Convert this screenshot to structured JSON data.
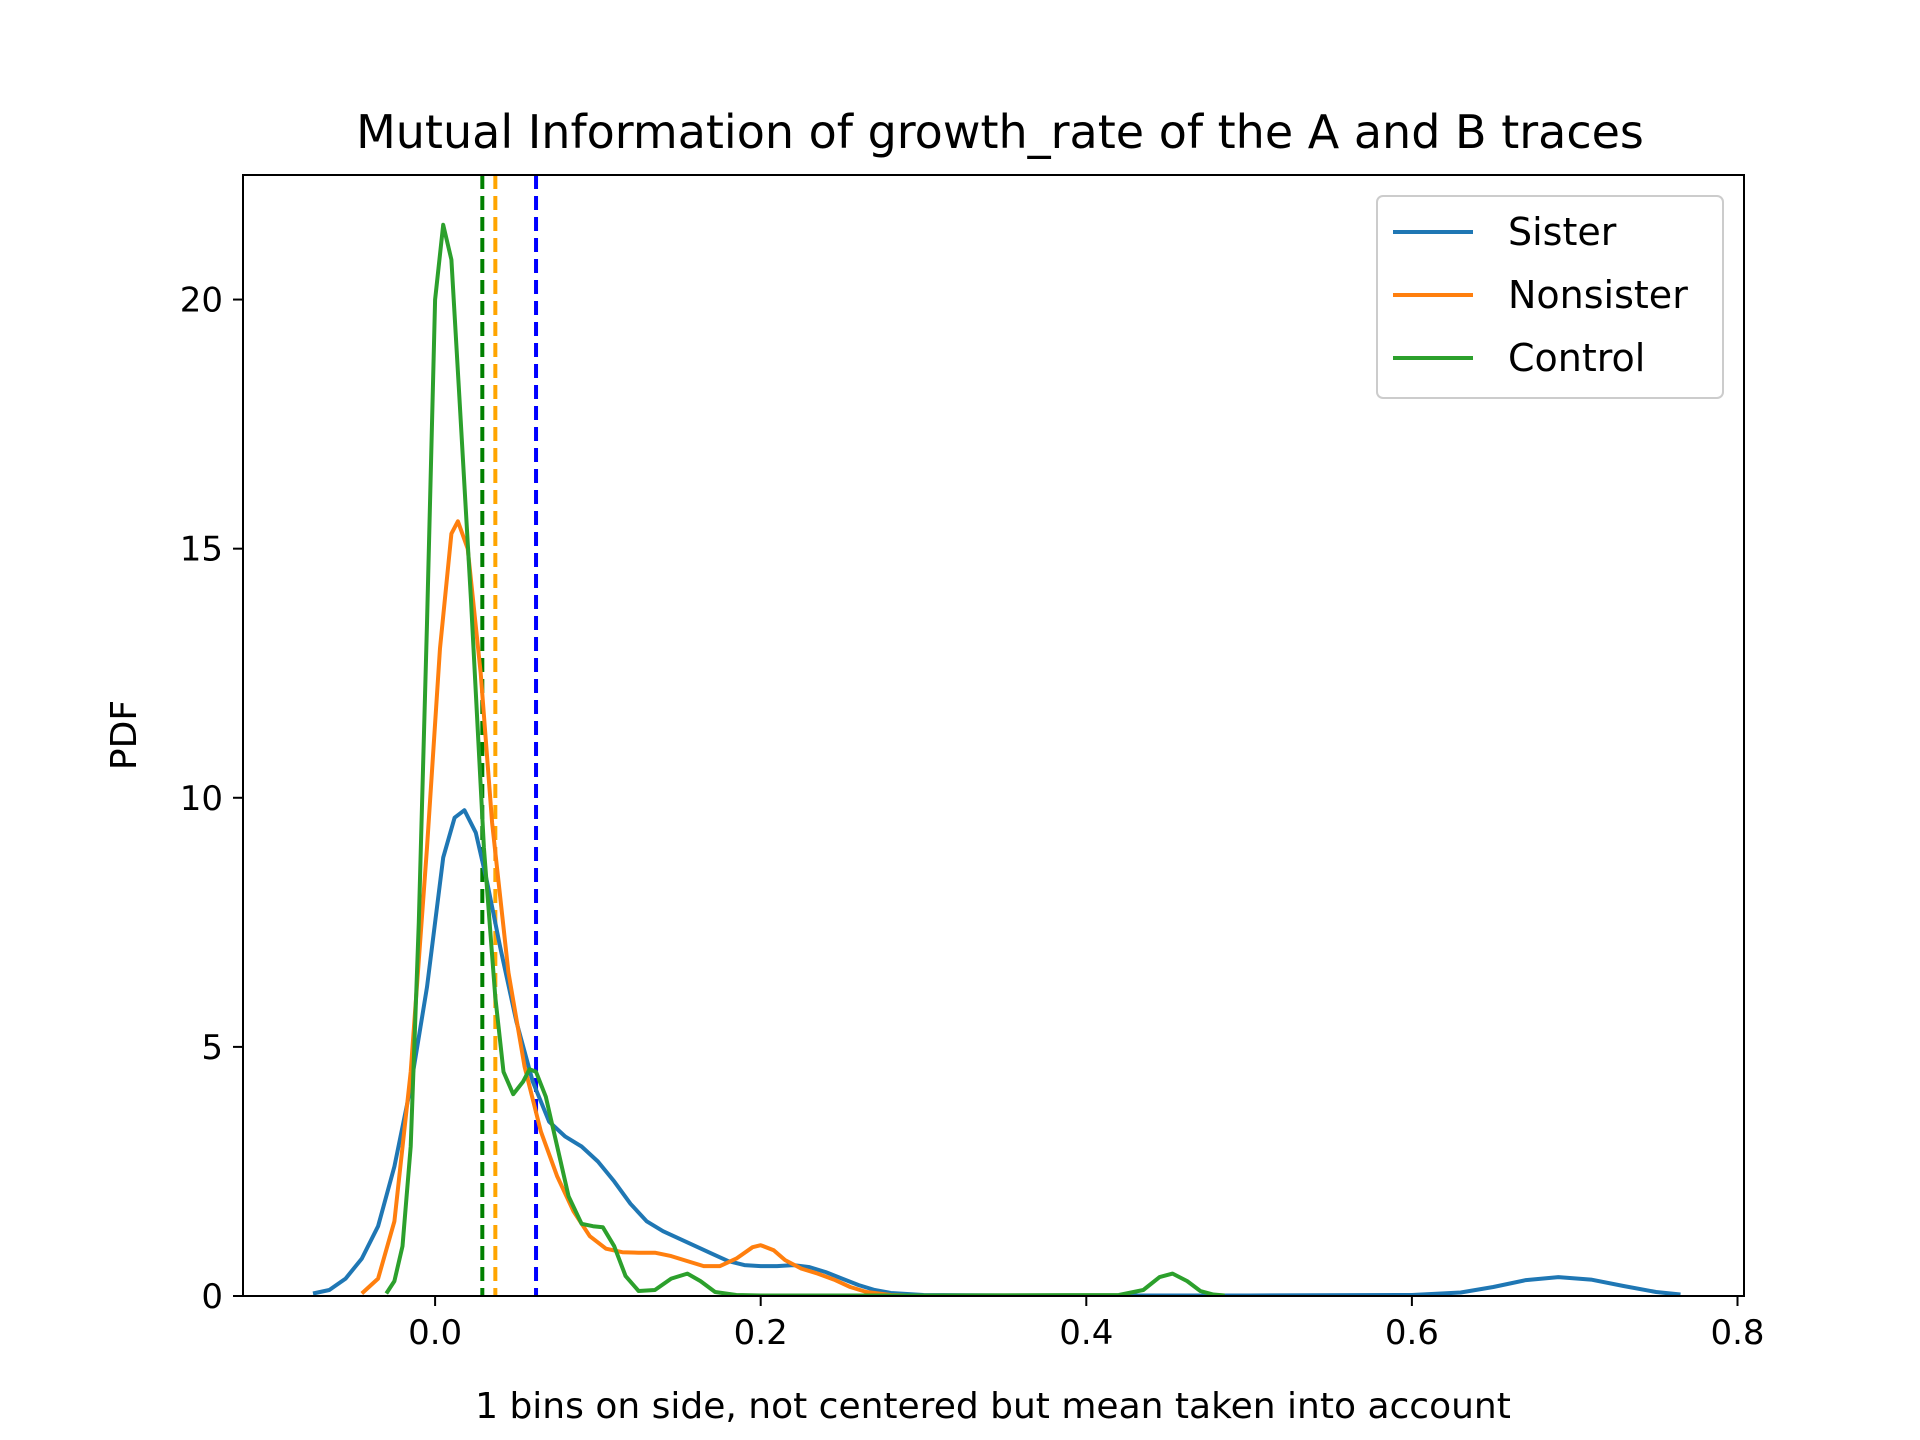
{
  "chart_data": {
    "type": "line",
    "title": "Mutual Information of growth_rate of the A and B traces",
    "xlabel": "1 bins on side, not centered but mean taken into account",
    "ylabel": "PDF",
    "xlim": [
      -0.118,
      0.804
    ],
    "ylim": [
      0,
      22.5
    ],
    "xticks": [
      0.0,
      0.2,
      0.4,
      0.6,
      0.8
    ],
    "xtick_labels": [
      "0.0",
      "0.2",
      "0.4",
      "0.6",
      "0.8"
    ],
    "yticks": [
      0,
      5,
      10,
      15,
      20
    ],
    "ytick_labels": [
      "0",
      "5",
      "10",
      "15",
      "20"
    ],
    "grid": false,
    "legend_position": "top-right",
    "series": [
      {
        "name": "Sister",
        "color": "#1f77b4",
        "points": [
          [
            -0.075,
            0.05
          ],
          [
            -0.065,
            0.12
          ],
          [
            -0.055,
            0.35
          ],
          [
            -0.045,
            0.75
          ],
          [
            -0.035,
            1.4
          ],
          [
            -0.025,
            2.6
          ],
          [
            -0.015,
            4.2
          ],
          [
            -0.005,
            6.2
          ],
          [
            0.005,
            8.8
          ],
          [
            0.012,
            9.6
          ],
          [
            0.018,
            9.75
          ],
          [
            0.025,
            9.3
          ],
          [
            0.032,
            8.3
          ],
          [
            0.04,
            7.0
          ],
          [
            0.05,
            5.5
          ],
          [
            0.06,
            4.3
          ],
          [
            0.07,
            3.5
          ],
          [
            0.08,
            3.2
          ],
          [
            0.09,
            3.0
          ],
          [
            0.1,
            2.7
          ],
          [
            0.11,
            2.3
          ],
          [
            0.12,
            1.85
          ],
          [
            0.13,
            1.5
          ],
          [
            0.14,
            1.3
          ],
          [
            0.15,
            1.15
          ],
          [
            0.16,
            1.0
          ],
          [
            0.17,
            0.85
          ],
          [
            0.18,
            0.7
          ],
          [
            0.19,
            0.62
          ],
          [
            0.2,
            0.6
          ],
          [
            0.21,
            0.6
          ],
          [
            0.22,
            0.62
          ],
          [
            0.23,
            0.58
          ],
          [
            0.24,
            0.48
          ],
          [
            0.25,
            0.35
          ],
          [
            0.26,
            0.22
          ],
          [
            0.27,
            0.12
          ],
          [
            0.28,
            0.06
          ],
          [
            0.3,
            0.02
          ],
          [
            0.35,
            0.01
          ],
          [
            0.5,
            0.01
          ],
          [
            0.6,
            0.02
          ],
          [
            0.63,
            0.07
          ],
          [
            0.65,
            0.18
          ],
          [
            0.67,
            0.32
          ],
          [
            0.69,
            0.38
          ],
          [
            0.71,
            0.33
          ],
          [
            0.73,
            0.2
          ],
          [
            0.75,
            0.08
          ],
          [
            0.765,
            0.03
          ]
        ]
      },
      {
        "name": "Nonsister",
        "color": "#ff7f0e",
        "points": [
          [
            -0.045,
            0.05
          ],
          [
            -0.035,
            0.35
          ],
          [
            -0.025,
            1.5
          ],
          [
            -0.015,
            4.5
          ],
          [
            -0.005,
            9.0
          ],
          [
            0.003,
            13.0
          ],
          [
            0.01,
            15.3
          ],
          [
            0.014,
            15.55
          ],
          [
            0.02,
            15.0
          ],
          [
            0.028,
            12.5
          ],
          [
            0.035,
            9.5
          ],
          [
            0.045,
            6.5
          ],
          [
            0.055,
            4.6
          ],
          [
            0.065,
            3.3
          ],
          [
            0.075,
            2.4
          ],
          [
            0.085,
            1.7
          ],
          [
            0.095,
            1.2
          ],
          [
            0.105,
            0.95
          ],
          [
            0.115,
            0.88
          ],
          [
            0.125,
            0.87
          ],
          [
            0.135,
            0.87
          ],
          [
            0.145,
            0.8
          ],
          [
            0.155,
            0.7
          ],
          [
            0.165,
            0.6
          ],
          [
            0.175,
            0.6
          ],
          [
            0.185,
            0.75
          ],
          [
            0.195,
            0.98
          ],
          [
            0.2,
            1.02
          ],
          [
            0.208,
            0.92
          ],
          [
            0.215,
            0.72
          ],
          [
            0.225,
            0.55
          ],
          [
            0.235,
            0.45
          ],
          [
            0.245,
            0.33
          ],
          [
            0.255,
            0.18
          ],
          [
            0.265,
            0.08
          ],
          [
            0.28,
            0.02
          ],
          [
            0.29,
            0.01
          ]
        ]
      },
      {
        "name": "Control",
        "color": "#2ca02c",
        "points": [
          [
            -0.03,
            0.05
          ],
          [
            -0.025,
            0.3
          ],
          [
            -0.02,
            1.0
          ],
          [
            -0.015,
            3.0
          ],
          [
            -0.01,
            7.5
          ],
          [
            -0.005,
            13.5
          ],
          [
            0.0,
            20.0
          ],
          [
            0.005,
            21.5
          ],
          [
            0.01,
            20.8
          ],
          [
            0.015,
            18.0
          ],
          [
            0.022,
            14.0
          ],
          [
            0.03,
            9.0
          ],
          [
            0.037,
            6.0
          ],
          [
            0.042,
            4.5
          ],
          [
            0.048,
            4.05
          ],
          [
            0.054,
            4.3
          ],
          [
            0.058,
            4.55
          ],
          [
            0.062,
            4.5
          ],
          [
            0.068,
            4.0
          ],
          [
            0.075,
            3.0
          ],
          [
            0.082,
            2.0
          ],
          [
            0.09,
            1.45
          ],
          [
            0.097,
            1.4
          ],
          [
            0.103,
            1.38
          ],
          [
            0.11,
            1.0
          ],
          [
            0.117,
            0.4
          ],
          [
            0.125,
            0.1
          ],
          [
            0.135,
            0.12
          ],
          [
            0.145,
            0.35
          ],
          [
            0.155,
            0.45
          ],
          [
            0.163,
            0.3
          ],
          [
            0.172,
            0.08
          ],
          [
            0.185,
            0.02
          ],
          [
            0.2,
            0.01
          ],
          [
            0.3,
            0.01
          ],
          [
            0.42,
            0.02
          ],
          [
            0.435,
            0.12
          ],
          [
            0.445,
            0.38
          ],
          [
            0.453,
            0.45
          ],
          [
            0.462,
            0.3
          ],
          [
            0.47,
            0.1
          ],
          [
            0.478,
            0.03
          ],
          [
            0.485,
            0.01
          ]
        ]
      }
    ],
    "vlines": [
      {
        "x": 0.029,
        "color": "#008000",
        "style": "dashed"
      },
      {
        "x": 0.037,
        "color": "#ffa500",
        "style": "dashed"
      },
      {
        "x": 0.062,
        "color": "#0000ff",
        "style": "dashed"
      }
    ]
  }
}
